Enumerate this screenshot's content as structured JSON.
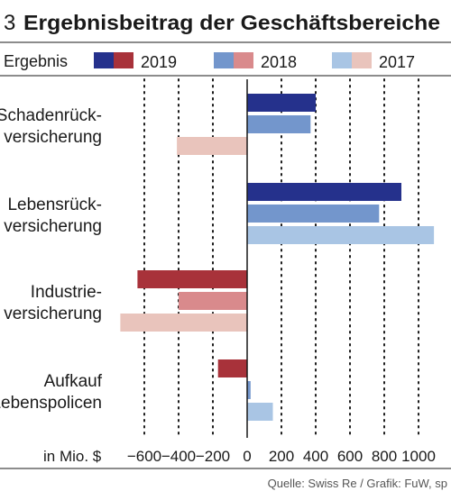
{
  "header": {
    "number": "3",
    "title": "Ergebnisbeitrag der Geschäftsbereiche"
  },
  "legend": {
    "label": "Ergebnis",
    "years": [
      "2019",
      "2018",
      "2017"
    ]
  },
  "footer": {
    "source": "Quelle: Swiss Re / Grafik: FuW, sp"
  },
  "chart_data": {
    "type": "bar",
    "orientation": "horizontal",
    "title": "Ergebnisbeitrag der Geschäftsbereiche",
    "xlabel": "in Mio. $",
    "ylabel": "",
    "categories": [
      [
        "Schadenrück-",
        "versicherung"
      ],
      [
        "Lebensrück-",
        "versicherung"
      ],
      [
        "Industrie-",
        "versicherung"
      ],
      [
        "Aufkauf",
        "Lebenspolicen"
      ]
    ],
    "xlim": [
      -740,
      1100
    ],
    "xticks": [
      -600,
      -400,
      -200,
      0,
      200,
      400,
      600,
      800,
      1000
    ],
    "xtick_labels": [
      "−600",
      "−400",
      "−200",
      "0",
      "200",
      "400",
      "600",
      "800",
      "1000"
    ],
    "grid": "vertical dotted",
    "legend_position": "top",
    "series": [
      {
        "name": "2019",
        "values": [
          400,
          900,
          -640,
          -170
        ],
        "color_positive": "#25318c",
        "color_negative": "#a8323a"
      },
      {
        "name": "2018",
        "values": [
          370,
          770,
          -400,
          20
        ],
        "color_positive": "#7396cc",
        "color_negative": "#d98a8c"
      },
      {
        "name": "2017",
        "values": [
          -410,
          1090,
          -740,
          150
        ],
        "color_positive": "#a9c5e4",
        "color_negative": "#e9c4bc"
      }
    ]
  }
}
